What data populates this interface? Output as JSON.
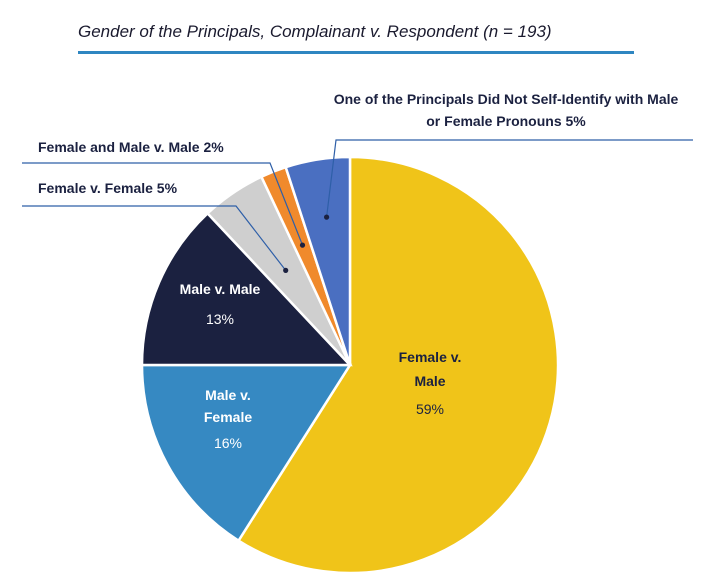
{
  "title": "Gender of the Principals, Complainant v. Respondent (n = 193)",
  "chart_data": {
    "type": "pie",
    "slices": [
      {
        "name": "Female v. Male",
        "lines": [
          "Female v.",
          "Male"
        ],
        "pct_label": "59%",
        "value": 59,
        "color": "#f0c419",
        "text_color": "#1b2140"
      },
      {
        "name": "Male v. Female",
        "lines": [
          "Male v.",
          "Female"
        ],
        "pct_label": "16%",
        "value": 16,
        "color": "#3689c2",
        "text_color": "#ffffff"
      },
      {
        "name": "Male v. Male",
        "lines": [
          "Male v. Male"
        ],
        "pct_label": "13%",
        "value": 13,
        "color": "#1b2140",
        "text_color": "#ffffff"
      },
      {
        "name": "Female v. Female",
        "lines": [
          "Female v. Female  5%"
        ],
        "value": 5,
        "color": "#cfcfcf",
        "text_color": "#1b2140"
      },
      {
        "name": "Female and Male v. Male",
        "lines": [
          "Female and Male v. Male  2%"
        ],
        "value": 2,
        "color": "#f08a2c",
        "text_color": "#1b2140"
      },
      {
        "name": "One of the Principals Did Not Self-Identify with Male or Female Pronouns",
        "lines": [
          "One of the Principals Did Not Self-Identify with Male",
          "or Female Pronouns  5%"
        ],
        "value": 5,
        "color": "#4a6fc1",
        "text_color": "#1b2140"
      }
    ]
  }
}
